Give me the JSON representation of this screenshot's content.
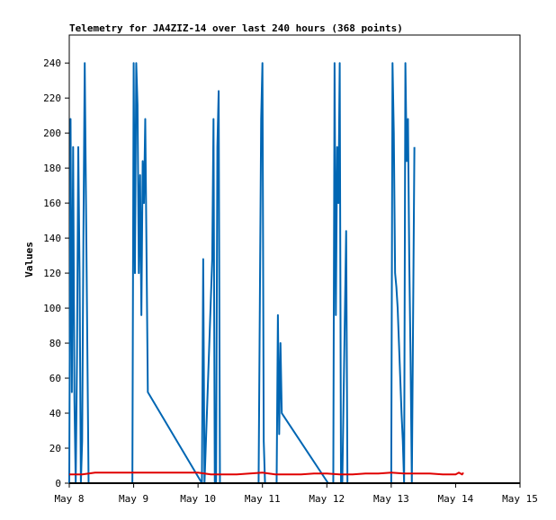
{
  "chart_data": {
    "type": "line",
    "title": "Telemetry for JA4ZIZ-14 over last 240 hours (368 points)",
    "xlabel": "",
    "ylabel": "Values",
    "x_ticks": [
      "May 8",
      "May 9",
      "May 10",
      "May 11",
      "May 12",
      "May 13",
      "May 14",
      "May 15"
    ],
    "xlim": [
      0,
      7
    ],
    "y_ticks": [
      "0",
      "20",
      "40",
      "60",
      "80",
      "100",
      "120",
      "140",
      "160",
      "180",
      "200",
      "220",
      "240"
    ],
    "ylim": [
      0,
      256
    ],
    "grid": false,
    "legend": "none",
    "colors": {
      "blue": "#0066b3",
      "red": "#e00000"
    },
    "series": [
      {
        "color": "blue",
        "x": [
          0.0,
          0.02,
          0.04,
          0.06,
          0.08,
          0.1,
          0.12,
          0.14,
          0.16,
          0.18,
          0.2,
          0.22,
          0.24,
          0.26,
          0.28,
          0.3,
          0.32,
          0.34,
          0.36,
          0.98,
          1.0,
          1.02,
          1.04,
          1.06,
          1.08,
          1.1,
          1.12,
          1.14,
          1.16,
          1.18,
          1.22,
          2.06,
          2.08,
          2.1,
          2.22,
          2.24,
          2.26,
          2.28,
          2.3,
          2.32,
          2.34,
          2.36,
          2.38,
          2.4,
          2.42,
          2.44,
          2.46,
          2.48,
          2.5,
          2.52,
          2.54,
          2.56,
          2.58,
          2.6,
          2.62,
          2.64,
          2.66,
          2.68,
          2.7,
          2.72,
          2.74,
          2.76,
          2.78,
          2.8,
          2.82,
          2.84,
          2.86,
          2.88,
          2.9,
          2.92,
          2.94,
          2.96,
          2.98,
          3.0,
          3.02,
          3.04,
          3.06,
          3.08,
          3.1,
          3.12,
          3.14,
          3.16,
          3.18,
          3.2,
          3.22,
          3.24,
          3.26,
          3.28,
          3.3,
          4.02,
          4.04,
          4.06,
          4.08,
          4.1,
          4.12,
          4.14,
          4.16,
          4.18,
          4.2,
          4.22,
          4.24,
          4.26,
          4.28,
          4.3,
          4.32,
          4.34,
          4.36,
          4.38,
          4.4,
          4.42,
          4.44,
          4.46,
          4.48,
          4.5,
          4.52,
          4.54,
          4.56,
          4.58,
          4.6,
          4.62,
          4.64,
          4.66,
          4.68,
          4.7,
          4.72,
          4.74,
          4.76,
          4.78,
          4.8,
          4.82,
          4.84,
          4.86,
          4.88,
          4.9,
          4.92,
          4.94,
          4.96,
          4.98,
          5.0,
          5.02,
          5.04,
          5.06,
          5.08,
          5.1,
          5.12,
          5.14,
          5.16,
          5.18,
          5.2,
          5.22,
          5.24,
          5.26,
          5.28,
          5.3,
          5.32,
          5.34,
          5.36
        ],
        "y": [
          0,
          208,
          52,
          192,
          48,
          0,
          72,
          192,
          120,
          0,
          24,
          144,
          240,
          160,
          80,
          0,
          0,
          0,
          0,
          0,
          240,
          120,
          240,
          216,
          120,
          176,
          96,
          184,
          160,
          208,
          52,
          0,
          128,
          0,
          128,
          208,
          0,
          0,
          192,
          224,
          0,
          0,
          0,
          0,
          0,
          0,
          0,
          0,
          0,
          0,
          0,
          0,
          0,
          0,
          0,
          0,
          0,
          0,
          0,
          0,
          0,
          0,
          0,
          0,
          0,
          0,
          0,
          0,
          0,
          0,
          0,
          104,
          208,
          240,
          24,
          0,
          0,
          0,
          0,
          0,
          0,
          0,
          0,
          0,
          0,
          96,
          28,
          80,
          40,
          0,
          0,
          0,
          0,
          0,
          0,
          0,
          0,
          0,
          0,
          0,
          0,
          0,
          0,
          0,
          0,
          0,
          0,
          0,
          0,
          0,
          0,
          0,
          0,
          0,
          0,
          0,
          0,
          0,
          0,
          0,
          0,
          0,
          0,
          0,
          0,
          0,
          0,
          0,
          0,
          0,
          0,
          0,
          0,
          0,
          0,
          0,
          0,
          0,
          0,
          0,
          0,
          0,
          0,
          0,
          0,
          0,
          0,
          0,
          0,
          0,
          0,
          0,
          0,
          0,
          0,
          0,
          0
        ]
      },
      {
        "color": "blue",
        "x": [
          4.1,
          4.12,
          4.14,
          4.16,
          4.18,
          4.2,
          4.22,
          4.24,
          4.3,
          4.32,
          5.0,
          5.02,
          5.04,
          5.06,
          5.08,
          5.1,
          5.12,
          5.14,
          5.16,
          5.18,
          5.2,
          5.22,
          5.24,
          5.26,
          5.28,
          5.3,
          5.32,
          5.34,
          5.36
        ],
        "y": [
          0,
          240,
          96,
          192,
          160,
          240,
          0,
          0,
          144,
          0,
          0,
          240,
          200,
          120,
          112,
          100,
          80,
          60,
          40,
          24,
          0,
          240,
          184,
          208,
          128,
          72,
          0,
          96,
          192
        ]
      },
      {
        "color": "red",
        "x": [
          0.0,
          0.2,
          0.4,
          0.6,
          0.8,
          1.0,
          1.2,
          1.4,
          1.6,
          1.8,
          2.0,
          2.2,
          2.4,
          2.6,
          2.8,
          3.0,
          3.2,
          3.4,
          3.6,
          3.8,
          4.0,
          4.2,
          4.4,
          4.6,
          4.8,
          5.0,
          5.2,
          5.4,
          5.6,
          5.8,
          5.9,
          6.0,
          6.05,
          6.1,
          6.12
        ],
        "y": [
          5,
          5,
          6,
          6,
          6,
          6,
          6,
          6,
          6,
          6,
          6,
          5,
          5,
          5,
          5.5,
          6,
          5,
          5,
          5,
          5.5,
          5.5,
          5,
          5,
          5.5,
          5.5,
          6,
          5.5,
          5.5,
          5.5,
          5,
          5,
          5,
          6,
          5,
          6
        ]
      }
    ]
  }
}
